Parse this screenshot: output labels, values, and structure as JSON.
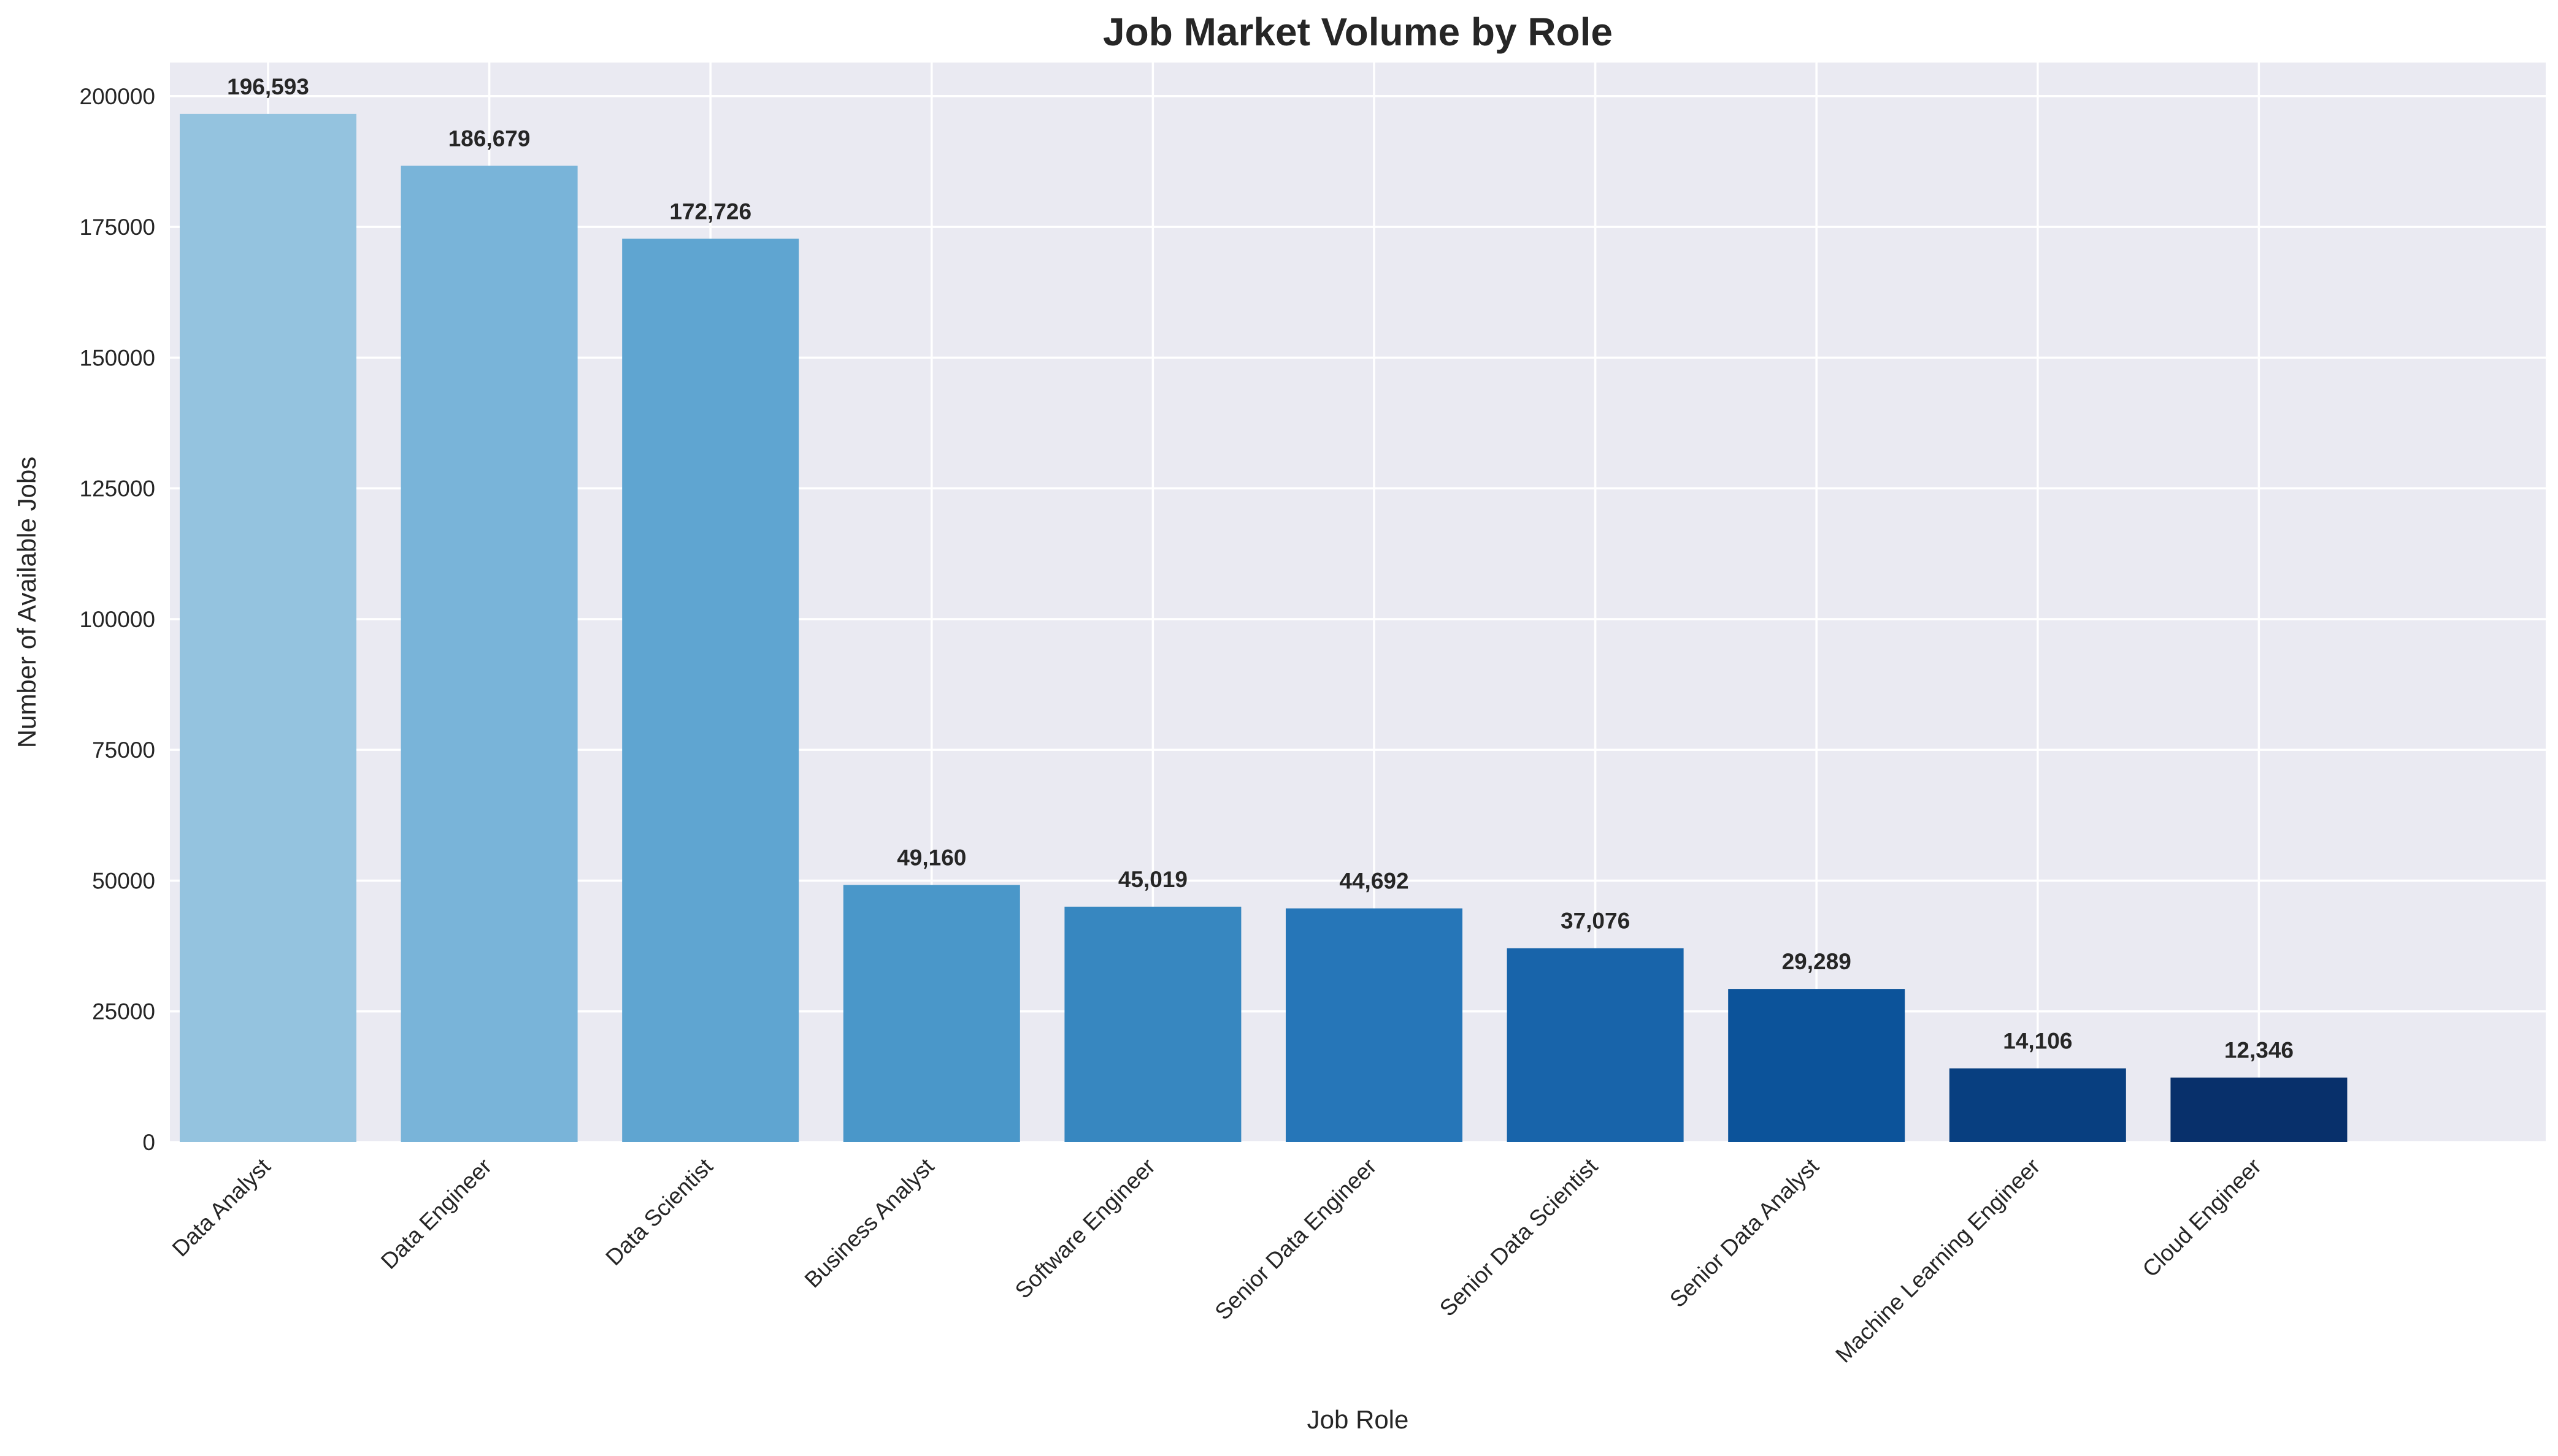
{
  "chart_data": {
    "type": "bar",
    "title": "Job Market Volume by Role",
    "xlabel": "Job Role",
    "ylabel": "Number of Available Jobs",
    "categories": [
      "Data Analyst",
      "Data Engineer",
      "Data Scientist",
      "Business Analyst",
      "Software Engineer",
      "Senior Data Engineer",
      "Senior Data Scientist",
      "Senior Data Analyst",
      "Machine Learning Engineer",
      "Cloud Engineer"
    ],
    "values": [
      196593,
      186679,
      172726,
      49160,
      45019,
      44692,
      37076,
      29289,
      14106,
      12346
    ],
    "value_labels": [
      "196,593",
      "186,679",
      "172,726",
      "49,160",
      "45,019",
      "44,692",
      "37,076",
      "29,289",
      "14,106",
      "12,346"
    ],
    "colors": [
      "#94c3df",
      "#79b4d9",
      "#5fa5d1",
      "#4a97c9",
      "#3787c0",
      "#2676b8",
      "#1864aa",
      "#0c539a",
      "#083f80",
      "#08306b"
    ],
    "y_ticks": [
      0,
      25000,
      50000,
      75000,
      100000,
      125000,
      150000,
      175000,
      200000
    ],
    "y_tick_labels": [
      "0",
      "25000",
      "50000",
      "75000",
      "100000",
      "125000",
      "150000",
      "175000",
      "200000"
    ],
    "ylim": [
      0,
      206423
    ],
    "grid": true,
    "plot_background": "#eaeaf2",
    "grid_color": "#ffffff"
  }
}
